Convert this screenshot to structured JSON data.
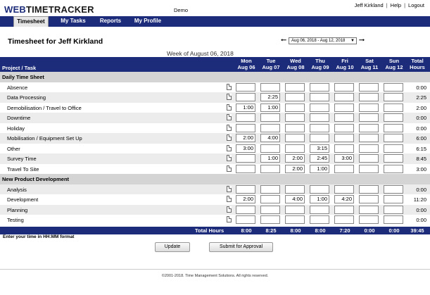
{
  "header": {
    "logo_web": "WEB",
    "logo_rest": "TIMETRACKER",
    "demo_label": "Demo",
    "user_name": "Jeff Kirkland",
    "help_label": "Help",
    "logout_label": "Logout",
    "separator": "|"
  },
  "nav": {
    "tabs": [
      {
        "label": "Timesheet",
        "active": true
      },
      {
        "label": "My Tasks"
      },
      {
        "label": "Reports"
      },
      {
        "label": "My Profile"
      }
    ]
  },
  "page": {
    "title": "Timesheet for Jeff Kirkland",
    "week_prev_icon": "left-arrow-icon",
    "week_next_icon": "right-arrow-icon",
    "week_select_value": "Aug 06, 2018 - Aug 12, 2018",
    "week_of": "Week of August 06, 2018"
  },
  "grid": {
    "task_header": "Project / Task",
    "days": [
      {
        "line1": "Mon",
        "line2": "Aug 06"
      },
      {
        "line1": "Tue",
        "line2": "Aug 07"
      },
      {
        "line1": "Wed",
        "line2": "Aug 08"
      },
      {
        "line1": "Thu",
        "line2": "Aug 09"
      },
      {
        "line1": "Fri",
        "line2": "Aug 10"
      },
      {
        "line1": "Sat",
        "line2": "Aug 11"
      },
      {
        "line1": "Sun",
        "line2": "Aug 12"
      }
    ],
    "total_header": {
      "line1": "Total",
      "line2": "Hours"
    },
    "sections": [
      {
        "name": "Daily Time Sheet",
        "rows": [
          {
            "task": "Absence",
            "values": [
              "",
              "",
              "",
              "",
              "",
              "",
              ""
            ],
            "total": "0:00"
          },
          {
            "task": "Data Processing",
            "values": [
              "",
              "2:25",
              "",
              "",
              "",
              "",
              ""
            ],
            "total": "2:25"
          },
          {
            "task": "Demobilisation / Travel to Office",
            "values": [
              "1:00",
              "1:00",
              "",
              "",
              "",
              "",
              ""
            ],
            "total": "2:00"
          },
          {
            "task": "Downtime",
            "values": [
              "",
              "",
              "",
              "",
              "",
              "",
              ""
            ],
            "total": "0:00"
          },
          {
            "task": "Holiday",
            "values": [
              "",
              "",
              "",
              "",
              "",
              "",
              ""
            ],
            "total": "0:00"
          },
          {
            "task": "Mobilisation / Equipment Set Up",
            "values": [
              "2:00",
              "4:00",
              "",
              "",
              "",
              "",
              ""
            ],
            "total": "6:00"
          },
          {
            "task": "Other",
            "values": [
              "3:00",
              "",
              "",
              "3:15",
              "",
              "",
              ""
            ],
            "total": "6:15"
          },
          {
            "task": "Survey Time",
            "values": [
              "",
              "1:00",
              "2:00",
              "2:45",
              "3:00",
              "",
              ""
            ],
            "total": "8:45"
          },
          {
            "task": "Travel To Site",
            "values": [
              "",
              "",
              "2:00",
              "1:00",
              "",
              "",
              ""
            ],
            "total": "3:00"
          }
        ]
      },
      {
        "name": "New Product Development",
        "rows": [
          {
            "task": "Analysis",
            "values": [
              "",
              "",
              "",
              "",
              "",
              "",
              ""
            ],
            "total": "0:00"
          },
          {
            "task": "Development",
            "values": [
              "2:00",
              "",
              "4:00",
              "1:00",
              "4:20",
              "",
              ""
            ],
            "total": "11:20"
          },
          {
            "task": "Planning",
            "values": [
              "",
              "",
              "",
              "",
              "",
              "",
              ""
            ],
            "total": "0:00"
          },
          {
            "task": "Testing",
            "values": [
              "",
              "",
              "",
              "",
              "",
              "",
              ""
            ],
            "total": "0:00"
          }
        ]
      }
    ],
    "totals_label": "Total Hours",
    "totals": [
      "8:00",
      "8:25",
      "8:00",
      "8:00",
      "7:20",
      "0:00",
      "0:00"
    ],
    "grand_total": "39:45"
  },
  "hint": "Enter your time in HH:MM format",
  "buttons": {
    "update": "Update",
    "submit": "Submit for Approval"
  },
  "footer": "©2001-2018. Time Management Solutions. All rights reserved."
}
